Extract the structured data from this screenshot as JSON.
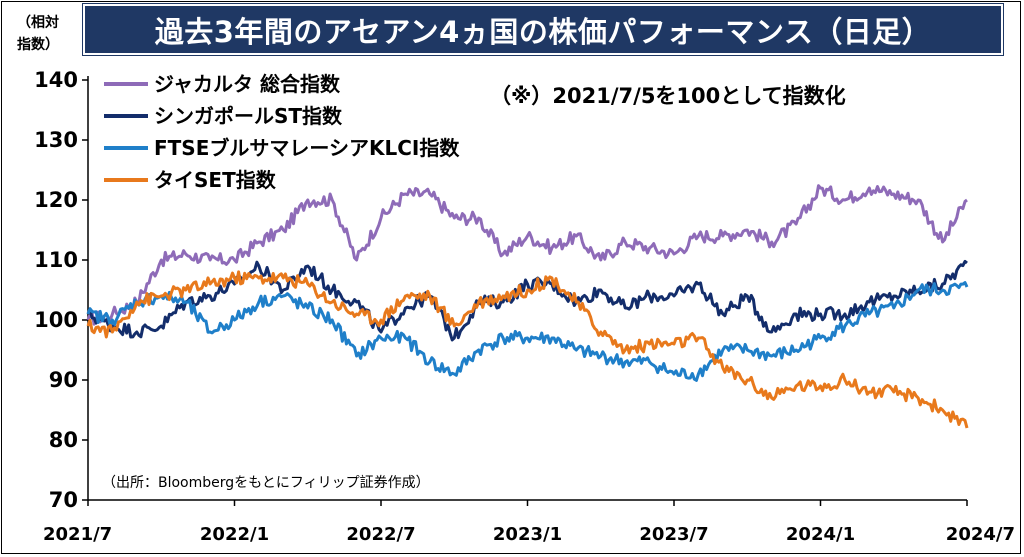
{
  "title": "過去3年間のアセアン4ヵ国の株価パフォーマンス（日足）",
  "unit_label": "（相対\n指数）",
  "note": "（※）2021/7/5を100として指数化",
  "source": "（出所：Bloombergをもとにフィリップ証券作成）",
  "colors": {
    "title_bg": "#1f3864",
    "jakarta": "#8e6bb8",
    "singapore": "#132d6b",
    "ftse_klci": "#1f7fc9",
    "thai_set": "#e8791c"
  },
  "chart_data": {
    "type": "line",
    "title": "過去3年間のアセアン4ヵ国の株価パフォーマンス（日足）",
    "ylabel": "（相対指数）",
    "xlabel": "",
    "ylim": [
      70,
      140
    ],
    "yticks": [
      70,
      80,
      90,
      100,
      110,
      120,
      130,
      140
    ],
    "xlim": [
      "2021-07",
      "2024-07"
    ],
    "xticks": [
      "2021/7",
      "2022/1",
      "2022/7",
      "2023/1",
      "2023/7",
      "2024/1",
      "2024/7"
    ],
    "x": [
      "2021-07",
      "2021-08",
      "2021-09",
      "2021-10",
      "2021-11",
      "2021-12",
      "2022-01",
      "2022-02",
      "2022-03",
      "2022-04",
      "2022-05",
      "2022-06",
      "2022-07",
      "2022-08",
      "2022-09",
      "2022-10",
      "2022-11",
      "2022-12",
      "2023-01",
      "2023-02",
      "2023-03",
      "2023-04",
      "2023-05",
      "2023-06",
      "2023-07",
      "2023-08",
      "2023-09",
      "2023-10",
      "2023-11",
      "2023-12",
      "2024-01",
      "2024-02",
      "2024-03",
      "2024-04",
      "2024-05",
      "2024-06",
      "2024-07"
    ],
    "grid": false,
    "legend_position": "top-left",
    "series": [
      {
        "name": "ジャカルタ 総合指数",
        "color_key": "jakarta",
        "values": [
          100,
          101,
          103,
          110,
          111,
          110,
          110,
          113,
          115,
          120,
          120,
          110,
          117,
          121,
          121,
          117,
          117,
          111,
          114,
          112,
          114,
          110,
          113,
          112,
          111,
          114,
          114,
          115,
          113,
          116,
          122,
          120,
          122,
          121,
          120,
          113,
          120
        ]
      },
      {
        "name": "シンガポールST指数",
        "color_key": "singapore",
        "values": [
          101,
          99,
          98,
          99,
          103,
          104,
          106,
          109,
          105,
          109,
          105,
          103,
          98,
          102,
          104,
          97,
          103,
          103,
          106,
          106,
          103,
          105,
          102,
          104,
          104,
          106,
          101,
          104,
          98,
          101,
          101,
          101,
          103,
          104,
          105,
          106,
          109.5
        ]
      },
      {
        "name": "FTSEブルサマレーシアKLCI指数",
        "color_key": "ftse_klci",
        "values": [
          101,
          100,
          103,
          104,
          103,
          98,
          100,
          103,
          104,
          102,
          100,
          94,
          97,
          97,
          93,
          91,
          95,
          97,
          97,
          97,
          95,
          94,
          93,
          93,
          91,
          91,
          95,
          95,
          94,
          95,
          97,
          99,
          101,
          102,
          105,
          105,
          105.5
        ]
      },
      {
        "name": "タイSET指数",
        "color_key": "thai_set",
        "values": [
          99,
          98,
          103,
          104,
          105,
          106,
          107,
          107,
          107,
          106,
          103,
          101,
          100,
          104,
          104,
          99,
          103,
          104,
          105,
          107,
          103,
          98,
          95,
          96,
          96,
          97,
          92,
          90,
          87,
          89,
          89,
          90,
          88,
          88,
          87,
          85,
          82
        ]
      }
    ]
  }
}
